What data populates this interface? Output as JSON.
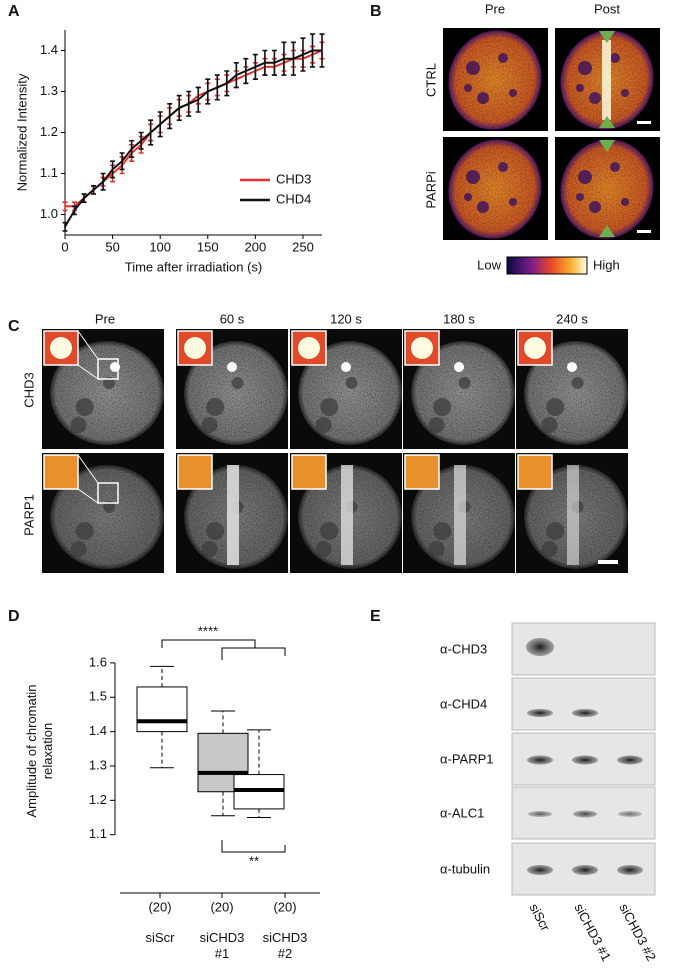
{
  "panel_labels": [
    "A",
    "B",
    "C",
    "D",
    "E"
  ],
  "chart_data": [
    {
      "type": "line",
      "xlabel": "Time after irradiation (s)",
      "ylabel": "Normalized Intensity",
      "x": [
        0,
        10,
        20,
        30,
        40,
        50,
        60,
        70,
        80,
        90,
        100,
        110,
        120,
        130,
        140,
        150,
        160,
        170,
        180,
        190,
        200,
        210,
        220,
        230,
        240,
        250,
        260,
        270
      ],
      "xlim": [
        0,
        270
      ],
      "xticks": [
        0,
        50,
        100,
        150,
        200,
        250
      ],
      "ylim": [
        0.95,
        1.45
      ],
      "yticks": [
        {
          "value": 1,
          "label": "1.0"
        },
        1.1,
        1.2,
        1.3,
        1.4
      ],
      "legend": "lower right",
      "series": [
        {
          "name": "CHD3",
          "color": "#e8312f",
          "values": [
            1.02,
            1.02,
            1.04,
            1.06,
            1.08,
            1.1,
            1.12,
            1.15,
            1.17,
            1.2,
            1.22,
            1.24,
            1.26,
            1.27,
            1.29,
            1.3,
            1.31,
            1.32,
            1.33,
            1.34,
            1.35,
            1.36,
            1.36,
            1.37,
            1.38,
            1.38,
            1.39,
            1.4
          ],
          "errors": [
            0.01,
            0.01,
            0.01,
            0.01,
            0.01,
            0.02,
            0.02,
            0.02,
            0.02,
            0.02,
            0.02,
            0.02,
            0.02,
            0.02,
            0.02,
            0.02,
            0.02,
            0.02,
            0.02,
            0.02,
            0.02,
            0.02,
            0.02,
            0.02,
            0.02,
            0.02,
            0.02,
            0.02
          ]
        },
        {
          "name": "CHD4",
          "color": "#111111",
          "values": [
            0.97,
            1.01,
            1.04,
            1.06,
            1.08,
            1.11,
            1.13,
            1.16,
            1.18,
            1.2,
            1.22,
            1.24,
            1.26,
            1.27,
            1.28,
            1.3,
            1.31,
            1.32,
            1.34,
            1.35,
            1.36,
            1.37,
            1.37,
            1.38,
            1.38,
            1.39,
            1.4,
            1.4
          ],
          "errors": [
            0.01,
            0.01,
            0.01,
            0.01,
            0.02,
            0.02,
            0.02,
            0.02,
            0.02,
            0.03,
            0.03,
            0.03,
            0.03,
            0.03,
            0.03,
            0.03,
            0.03,
            0.03,
            0.03,
            0.03,
            0.03,
            0.03,
            0.03,
            0.04,
            0.04,
            0.04,
            0.04,
            0.04
          ]
        }
      ]
    },
    {
      "type": "box",
      "ylabel": "Amplitude of chromatin relaxation",
      "categories": [
        "siScr",
        "siCHD3 #1",
        "siCHD3 #2"
      ],
      "n_labels": [
        "(20)",
        "(20)",
        "(20)"
      ],
      "ylim": [
        1.07,
        1.623
      ],
      "yticks": [
        1.1,
        1.2,
        1.3,
        1.4,
        1.5,
        1.6
      ],
      "boxes": [
        {
          "min": 1.295,
          "q1": 1.4,
          "median": 1.43,
          "q3": 1.53,
          "max": 1.59,
          "color": "#ffffff"
        },
        {
          "min": 1.155,
          "q1": 1.225,
          "median": 1.28,
          "q3": 1.395,
          "max": 1.46,
          "color": "#c8c8c8"
        },
        {
          "min": 1.15,
          "q1": 1.175,
          "median": 1.23,
          "q3": 1.275,
          "max": 1.405,
          "color": "#ffffff"
        }
      ],
      "significance": [
        "****",
        "**"
      ]
    }
  ],
  "panel_b": {
    "columns": [
      "Pre",
      "Post"
    ],
    "rows": [
      "CTRL",
      "PARPi"
    ],
    "colorbar": [
      "Low",
      "High"
    ]
  },
  "panel_c": {
    "columns": [
      "Pre",
      "60 s",
      "120 s",
      "180 s",
      "240 s"
    ],
    "rows": [
      "CHD3",
      "PARP1"
    ]
  },
  "panel_e": {
    "rows": [
      "α-CHD3",
      "α-CHD4",
      "α-PARP1",
      "α-ALC1",
      "α-tubulin"
    ],
    "lanes": [
      "siScr",
      "siCHD3 #1",
      "siCHD3 #2"
    ]
  }
}
